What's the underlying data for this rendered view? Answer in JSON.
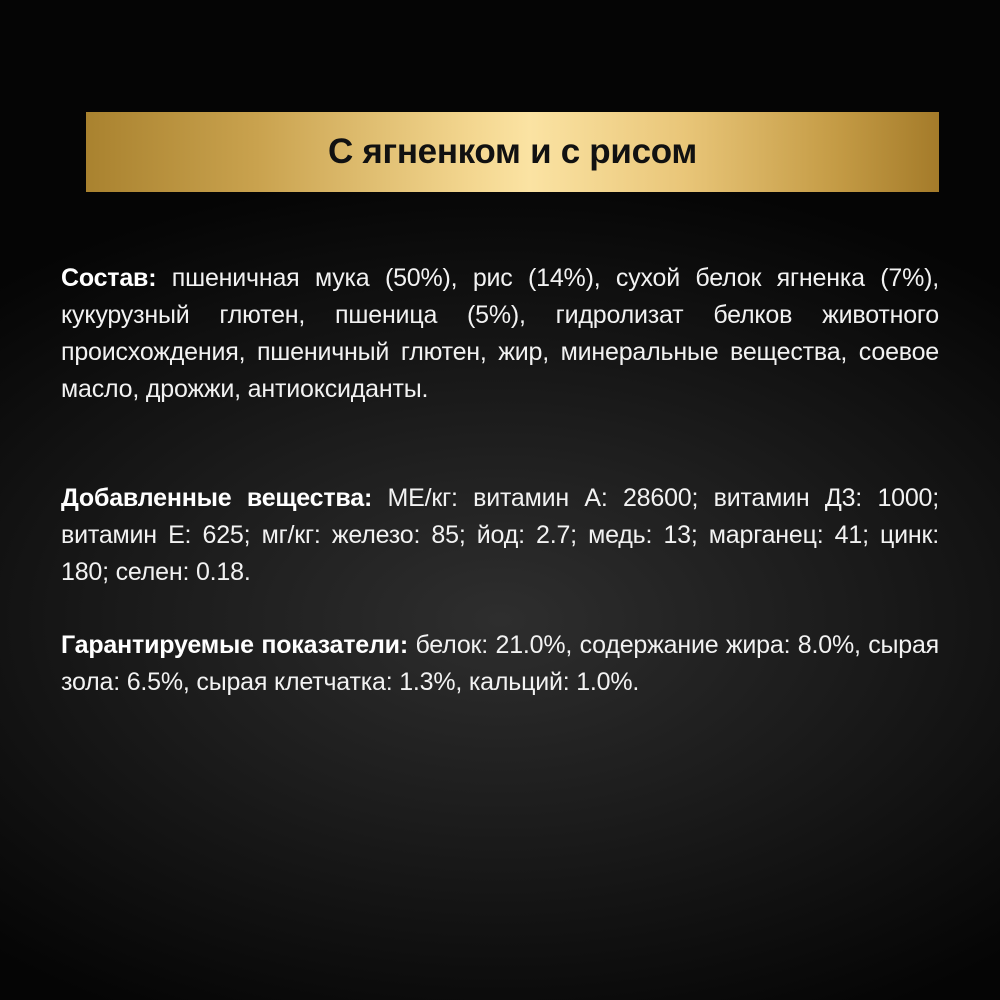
{
  "title": "С ягненком и с рисом",
  "sections": [
    {
      "label": "Состав:",
      "text": "пшеничная мука (50%), рис (14%), сухой белок ягненка (7%), кукурузный глютен, пшеница (5%), гидролизат белков животного происхождения, пшеничный глютен, жир, минеральные вещества, соевое масло, дрожжи, антиоксиданты."
    },
    {
      "label": "Добавленные вещества:",
      "text": "МЕ/кг: витамин А: 28600; витамин Д3: 1000; витамин Е: 625; мг/кг: железо: 85; йод: 2.7; медь: 13; марганец: 41; цинк: 180; селен: 0.18."
    },
    {
      "label": "Гарантируемые показатели:",
      "text": "белок: 21.0%, содержание жира: 8.0%, сырая зола: 6.5%, сырая клетчатка: 1.3%, кальций: 1.0%."
    }
  ],
  "colors": {
    "banner_gold": "#f3d68f",
    "background": "#1c1c1c"
  }
}
